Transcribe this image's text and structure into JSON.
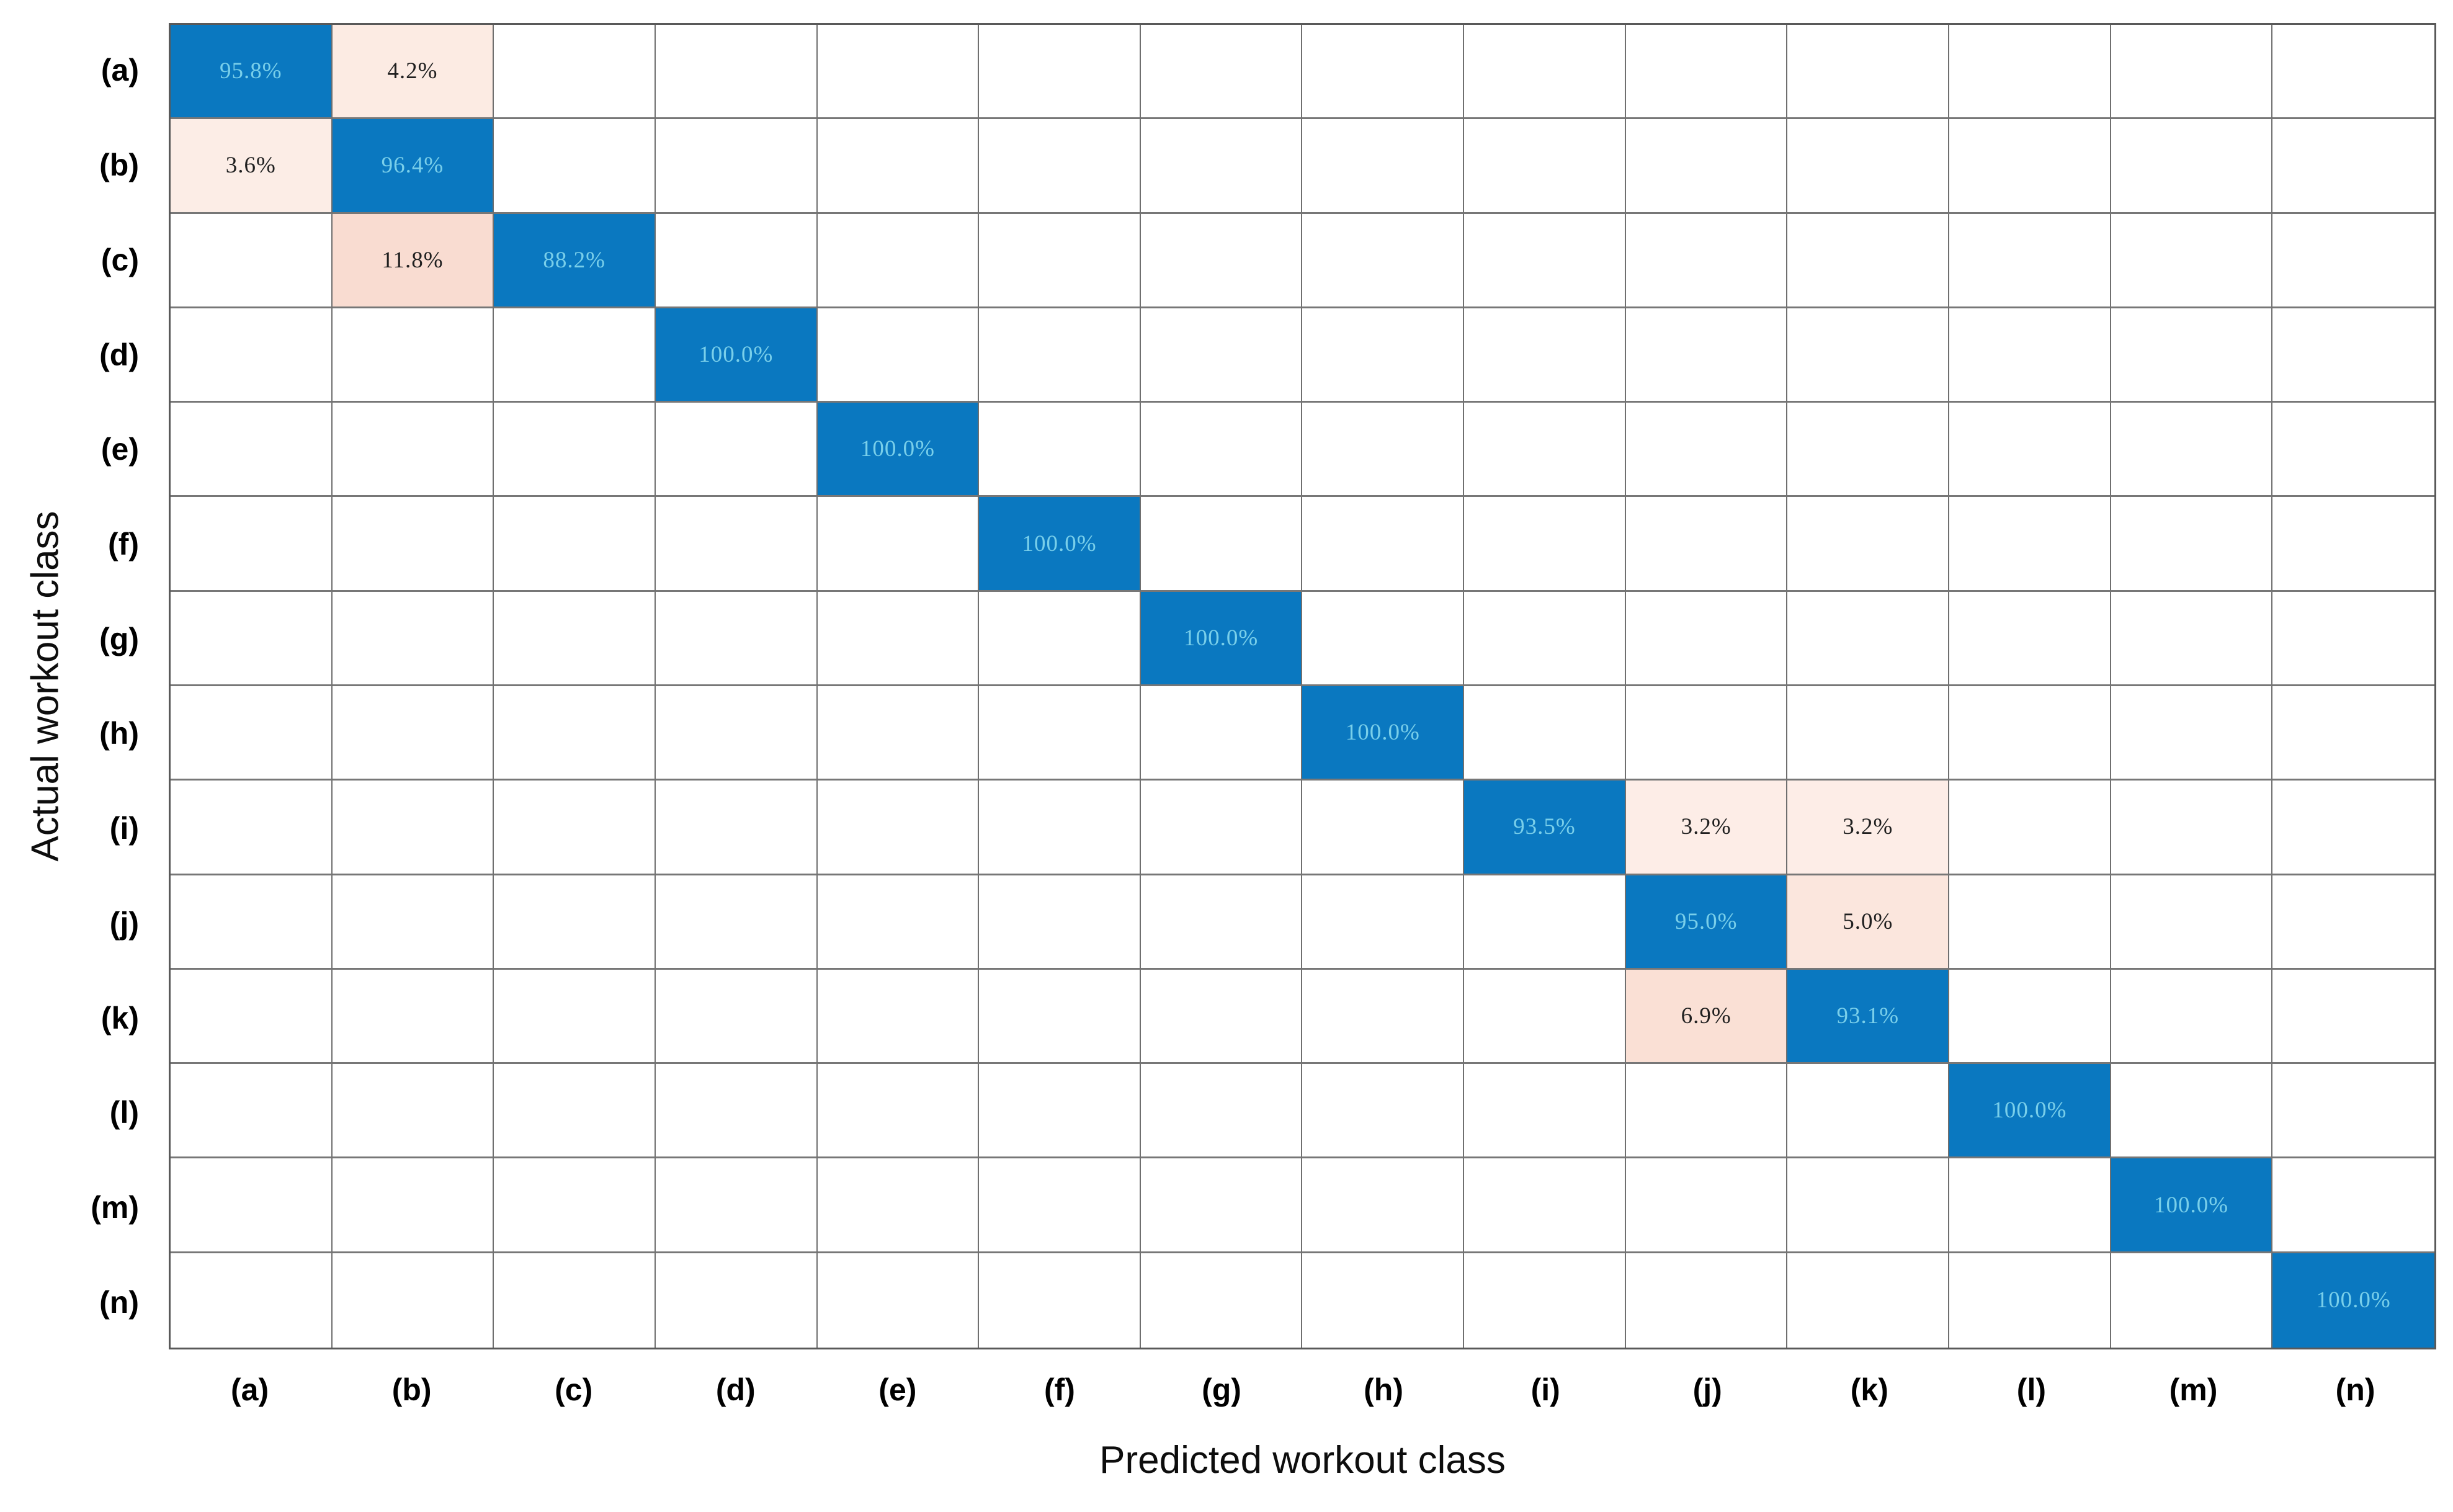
{
  "chart_data": {
    "type": "heatmap",
    "subtype": "confusion-matrix",
    "title": "",
    "xlabel": "Predicted workout class",
    "ylabel": "Actual workout class",
    "x_categories": [
      "(a)",
      "(b)",
      "(c)",
      "(d)",
      "(e)",
      "(f)",
      "(g)",
      "(h)",
      "(i)",
      "(j)",
      "(k)",
      "(l)",
      "(m)",
      "(n)"
    ],
    "y_categories": [
      "(a)",
      "(b)",
      "(c)",
      "(d)",
      "(e)",
      "(f)",
      "(g)",
      "(h)",
      "(i)",
      "(j)",
      "(k)",
      "(l)",
      "(m)",
      "(n)"
    ],
    "value_unit": "%",
    "grid": true,
    "legend_position": "none",
    "axis_ranges": {
      "rows": 14,
      "cols": 14
    },
    "cells": [
      {
        "row": 0,
        "col": 0,
        "value": 95.8,
        "label": "95.8%",
        "bg": "#0a78c0",
        "fg": "#79cfea"
      },
      {
        "row": 0,
        "col": 1,
        "value": 4.2,
        "label": "4.2%",
        "bg": "#fcebe3",
        "fg": "#1f1f1f"
      },
      {
        "row": 1,
        "col": 0,
        "value": 3.6,
        "label": "3.6%",
        "bg": "#fcede6",
        "fg": "#1f1f1f"
      },
      {
        "row": 1,
        "col": 1,
        "value": 96.4,
        "label": "96.4%",
        "bg": "#0a78c0",
        "fg": "#79cfea"
      },
      {
        "row": 2,
        "col": 1,
        "value": 11.8,
        "label": "11.8%",
        "bg": "#f9dcd1",
        "fg": "#1f1f1f"
      },
      {
        "row": 2,
        "col": 2,
        "value": 88.2,
        "label": "88.2%",
        "bg": "#0a78c0",
        "fg": "#79cfea"
      },
      {
        "row": 3,
        "col": 3,
        "value": 100.0,
        "label": "100.0%",
        "bg": "#0a78c0",
        "fg": "#79cfea"
      },
      {
        "row": 4,
        "col": 4,
        "value": 100.0,
        "label": "100.0%",
        "bg": "#0a78c0",
        "fg": "#79cfea"
      },
      {
        "row": 5,
        "col": 5,
        "value": 100.0,
        "label": "100.0%",
        "bg": "#0a78c0",
        "fg": "#79cfea"
      },
      {
        "row": 6,
        "col": 6,
        "value": 100.0,
        "label": "100.0%",
        "bg": "#0a78c0",
        "fg": "#79cfea"
      },
      {
        "row": 7,
        "col": 7,
        "value": 100.0,
        "label": "100.0%",
        "bg": "#0a78c0",
        "fg": "#79cfea"
      },
      {
        "row": 8,
        "col": 8,
        "value": 93.5,
        "label": "93.5%",
        "bg": "#0a78c0",
        "fg": "#79cfea"
      },
      {
        "row": 8,
        "col": 9,
        "value": 3.2,
        "label": "3.2%",
        "bg": "#fdede7",
        "fg": "#1f1f1f"
      },
      {
        "row": 8,
        "col": 10,
        "value": 3.2,
        "label": "3.2%",
        "bg": "#fdede7",
        "fg": "#1f1f1f"
      },
      {
        "row": 9,
        "col": 9,
        "value": 95.0,
        "label": "95.0%",
        "bg": "#0a78c0",
        "fg": "#79cfea"
      },
      {
        "row": 9,
        "col": 10,
        "value": 5.0,
        "label": "5.0%",
        "bg": "#fbe6dd",
        "fg": "#1f1f1f"
      },
      {
        "row": 10,
        "col": 9,
        "value": 6.9,
        "label": "6.9%",
        "bg": "#fae0d5",
        "fg": "#1f1f1f"
      },
      {
        "row": 10,
        "col": 10,
        "value": 93.1,
        "label": "93.1%",
        "bg": "#0a78c0",
        "fg": "#79cfea"
      },
      {
        "row": 11,
        "col": 11,
        "value": 100.0,
        "label": "100.0%",
        "bg": "#0a78c0",
        "fg": "#79cfea"
      },
      {
        "row": 12,
        "col": 12,
        "value": 100.0,
        "label": "100.0%",
        "bg": "#0a78c0",
        "fg": "#79cfea"
      },
      {
        "row": 13,
        "col": 13,
        "value": 100.0,
        "label": "100.0%",
        "bg": "#0a78c0",
        "fg": "#79cfea"
      }
    ],
    "colors": {
      "diagonal_bg": "#0a78c0",
      "diagonal_text": "#79cfea",
      "offdiag_text": "#1f1f1f",
      "empty_cell_bg": "#ffffff",
      "grid_line": "#6f6f6f",
      "outer_border": "#595959",
      "background": "#ffffff"
    }
  }
}
